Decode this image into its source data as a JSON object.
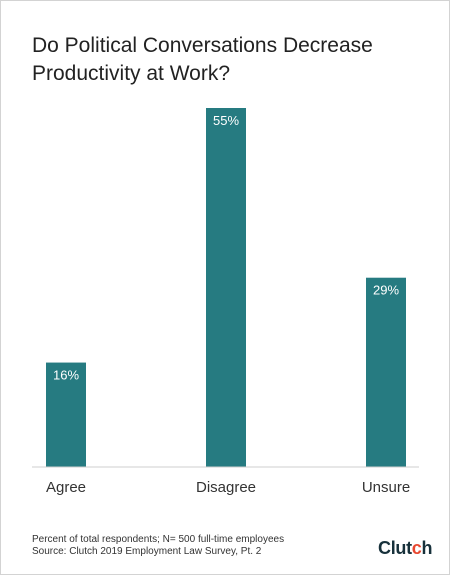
{
  "chart_data": {
    "type": "bar",
    "title": "Do Political Conversations Decrease Productivity at Work?",
    "categories": [
      "Agree",
      "Disagree",
      "Unsure"
    ],
    "values": [
      16,
      55,
      29
    ],
    "value_labels": [
      "16%",
      "55%",
      "29%"
    ],
    "ylim": [
      0,
      55
    ],
    "grid": false,
    "bar_color": "#267b81"
  },
  "footnotes": [
    "Percent of total respondents; N= 500 full-time employees",
    "Source: Clutch 2019 Employment Law Survey, Pt. 2"
  ],
  "brand": {
    "logo_text": "Clutch",
    "accent_color": "#e8472f"
  }
}
